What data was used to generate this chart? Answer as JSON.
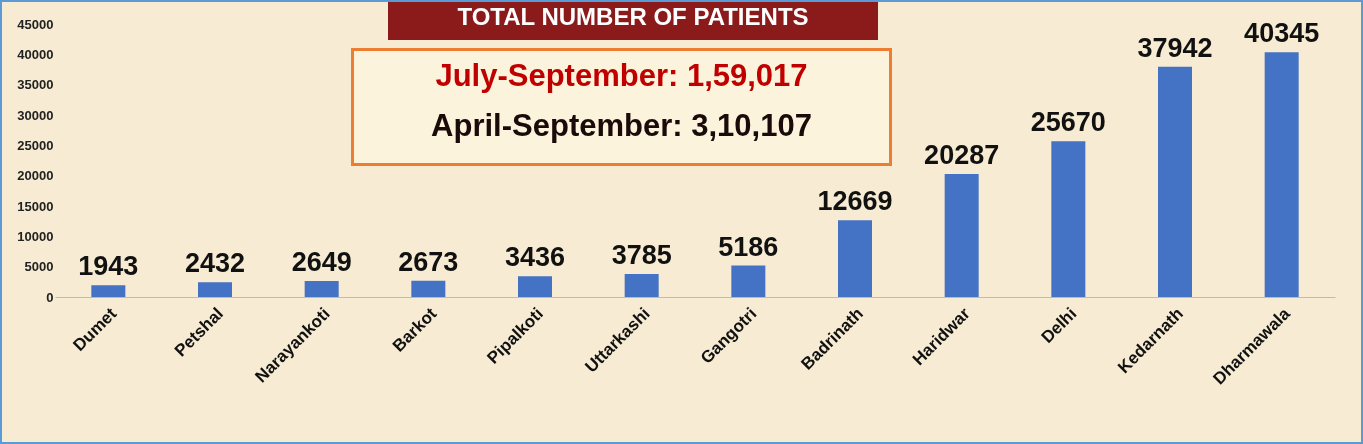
{
  "chart_data": {
    "type": "bar",
    "title": "TOTAL NUMBER OF PATIENTS",
    "annotations": [
      "July-September: 1,59,017",
      "April-September: 3,10,107"
    ],
    "categories": [
      "Dumet",
      "Petshal",
      "Narayankoti",
      "Barkot",
      "Pipalkoti",
      "Uttarkashi",
      "Gangotri",
      "Badrinath",
      "Haridwar",
      "Delhi",
      "Kedarnath",
      "Dharmawala"
    ],
    "values": [
      1943,
      2432,
      2649,
      2673,
      3436,
      3785,
      5186,
      12669,
      20287,
      25670,
      37942,
      40345
    ],
    "color": "#4472c4",
    "data_labels": true,
    "grid": false,
    "ylim": [
      0,
      45000
    ],
    "yticks": [
      0,
      5000,
      10000,
      15000,
      20000,
      25000,
      30000,
      35000,
      40000,
      45000
    ]
  }
}
